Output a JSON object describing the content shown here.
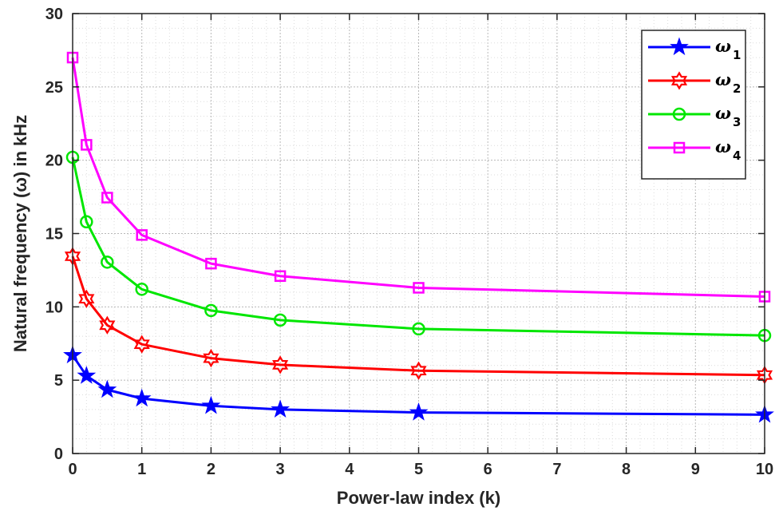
{
  "chart_data": {
    "type": "line",
    "title": "",
    "xlabel": "Power-law index (k)",
    "ylabel": "Natural frequency (ω) in kHz",
    "xlim": [
      0,
      10
    ],
    "ylim": [
      0,
      30
    ],
    "xticks": [
      0,
      1,
      2,
      3,
      4,
      5,
      6,
      7,
      8,
      9,
      10
    ],
    "yticks": [
      0,
      5,
      10,
      15,
      20,
      25,
      30
    ],
    "grid": "major-and-minor, dotted",
    "legend_position": "top-right",
    "x": [
      0,
      0.2,
      0.5,
      1,
      2,
      3,
      5,
      10
    ],
    "series": [
      {
        "legend_symbol": "ω",
        "legend_subscript": "1",
        "color": "#0000ff",
        "marker": "star",
        "values": [
          6.7,
          5.3,
          4.35,
          3.75,
          3.25,
          3.0,
          2.8,
          2.65
        ]
      },
      {
        "legend_symbol": "ω",
        "legend_subscript": "2",
        "color": "#ff0000",
        "marker": "hexagram",
        "values": [
          13.45,
          10.55,
          8.75,
          7.45,
          6.5,
          6.05,
          5.65,
          5.35
        ]
      },
      {
        "legend_symbol": "ω",
        "legend_subscript": "3",
        "color": "#00e600",
        "marker": "circle",
        "values": [
          20.2,
          15.8,
          13.05,
          11.2,
          9.75,
          9.1,
          8.5,
          8.05
        ]
      },
      {
        "legend_symbol": "ω",
        "legend_subscript": "4",
        "color": "#ff00ff",
        "marker": "square",
        "values": [
          27.0,
          21.05,
          17.45,
          14.9,
          12.95,
          12.1,
          11.3,
          10.7
        ]
      }
    ]
  }
}
